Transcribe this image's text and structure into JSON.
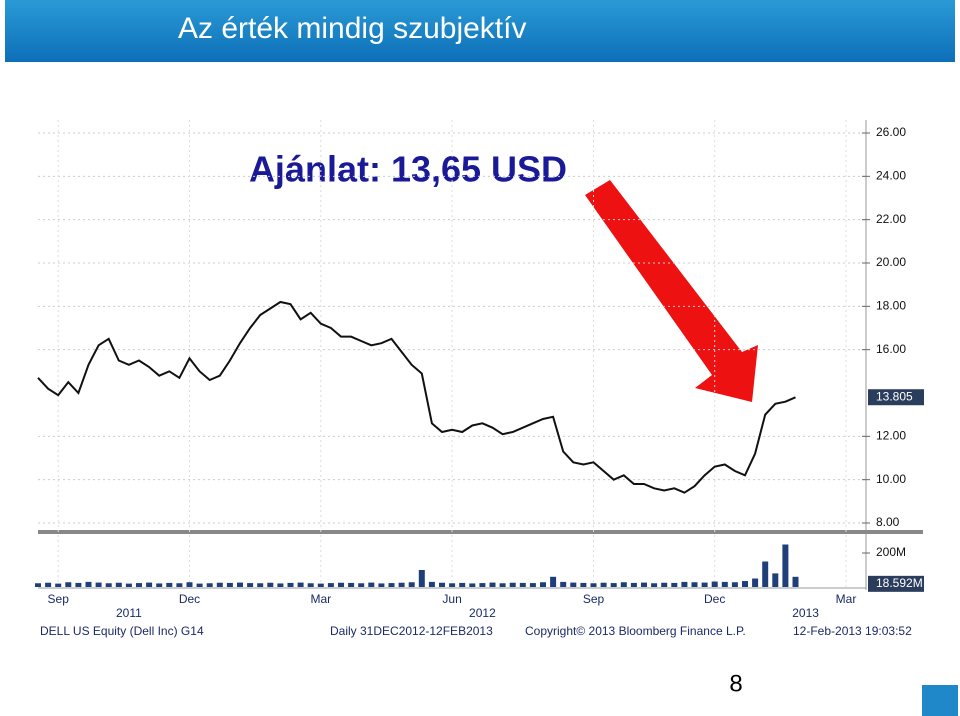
{
  "slide": {
    "title": "Az érték mindig szubjektív",
    "page_number": "8"
  },
  "chart_data": {
    "type": "line",
    "annotation": "Ajánlat: 13,65 USD",
    "categories": [
      null,
      null,
      "Sep",
      null,
      null,
      null,
      null,
      null,
      null,
      null,
      null,
      null,
      null,
      null,
      null,
      "Dec",
      null,
      null,
      null,
      null,
      null,
      null,
      null,
      null,
      null,
      null,
      null,
      null,
      "Mar",
      null,
      null,
      null,
      null,
      null,
      null,
      null,
      null,
      null,
      null,
      null,
      null,
      "Jun",
      null,
      null,
      null,
      null,
      null,
      null,
      null,
      null,
      null,
      null,
      null,
      null,
      null,
      "Sep",
      null,
      null,
      null,
      null,
      null,
      null,
      null,
      null,
      null,
      null,
      null,
      "Dec",
      null,
      null,
      null,
      null,
      null,
      null,
      null,
      null,
      null,
      null,
      null,
      null,
      "Mar"
    ],
    "years": [
      null,
      null,
      null,
      null,
      null,
      null,
      null,
      null,
      null,
      "2011",
      null,
      null,
      null,
      null,
      null,
      null,
      null,
      null,
      null,
      null,
      null,
      null,
      null,
      null,
      null,
      null,
      null,
      null,
      null,
      null,
      null,
      null,
      null,
      null,
      null,
      null,
      null,
      null,
      null,
      null,
      null,
      null,
      null,
      null,
      "2012",
      null,
      null,
      null,
      null,
      null,
      null,
      null,
      null,
      null,
      null,
      null,
      null,
      null,
      null,
      null,
      null,
      null,
      null,
      null,
      null,
      null,
      null,
      null,
      null,
      null,
      null,
      null,
      null,
      null,
      null,
      null,
      "2013",
      null,
      null,
      null,
      null
    ],
    "series": [
      {
        "name": "DELL",
        "color": "#111111",
        "values": [
          14.7,
          14.2,
          13.9,
          14.5,
          14.0,
          15.3,
          16.2,
          16.5,
          15.5,
          15.3,
          15.5,
          15.2,
          14.8,
          15.0,
          14.7,
          15.6,
          15.0,
          14.6,
          14.8,
          15.5,
          16.3,
          17.0,
          17.6,
          17.9,
          18.2,
          18.1,
          17.4,
          17.7,
          17.2,
          17.0,
          16.6,
          16.6,
          16.4,
          16.2,
          16.3,
          16.5,
          15.9,
          15.3,
          14.9,
          12.6,
          12.2,
          12.3,
          12.2,
          12.5,
          12.6,
          12.4,
          12.1,
          12.2,
          12.4,
          12.6,
          12.8,
          12.9,
          11.3,
          10.8,
          10.7,
          10.8,
          10.4,
          10.0,
          10.2,
          9.8,
          9.8,
          9.6,
          9.5,
          9.6,
          9.4,
          9.7,
          10.2,
          10.6,
          10.7,
          10.4,
          10.2,
          11.2,
          13.0,
          13.5,
          13.6,
          13.8,
          null,
          null,
          null,
          null,
          null
        ]
      }
    ],
    "ylim": [
      8,
      26
    ],
    "yticks": [
      {
        "value": 26,
        "label": "26.00"
      },
      {
        "value": 24,
        "label": "24.00"
      },
      {
        "value": 22,
        "label": "22.00"
      },
      {
        "value": 20,
        "label": "20.00"
      },
      {
        "value": 18,
        "label": "18.00"
      },
      {
        "value": 16,
        "label": "16.00"
      },
      {
        "value": 12,
        "label": "12.00"
      },
      {
        "value": 10,
        "label": "10.00"
      },
      {
        "value": 8,
        "label": "8.00"
      }
    ],
    "last_price": 13.805,
    "volume": {
      "color": "#1f3f7a",
      "values": [
        22,
        25,
        20,
        28,
        24,
        30,
        26,
        22,
        25,
        20,
        23,
        26,
        21,
        24,
        22,
        28,
        20,
        22,
        25,
        24,
        26,
        23,
        22,
        25,
        21,
        24,
        26,
        22,
        20,
        23,
        25,
        24,
        22,
        26,
        21,
        23,
        25,
        28,
        100,
        30,
        25,
        22,
        24,
        21,
        23,
        26,
        22,
        25,
        24,
        23,
        28,
        60,
        30,
        26,
        24,
        22,
        25,
        23,
        28,
        24,
        26,
        22,
        25,
        24,
        30,
        28,
        26,
        32,
        30,
        28,
        35,
        50,
        150,
        80,
        250,
        60,
        null,
        null,
        null,
        null,
        null
      ],
      "ylim": [
        0,
        300
      ],
      "yticks": [
        {
          "value": 200,
          "label": "200M"
        }
      ],
      "last": {
        "value": 18.592,
        "label": "18.592M"
      }
    },
    "footer": [
      "DELL US Equity (Dell Inc) G14",
      "Daily 31DEC2012-12FEB2013",
      "Copyright© 2013 Bloomberg Finance L.P.",
      "12-Feb-2013 19:03:52"
    ]
  }
}
